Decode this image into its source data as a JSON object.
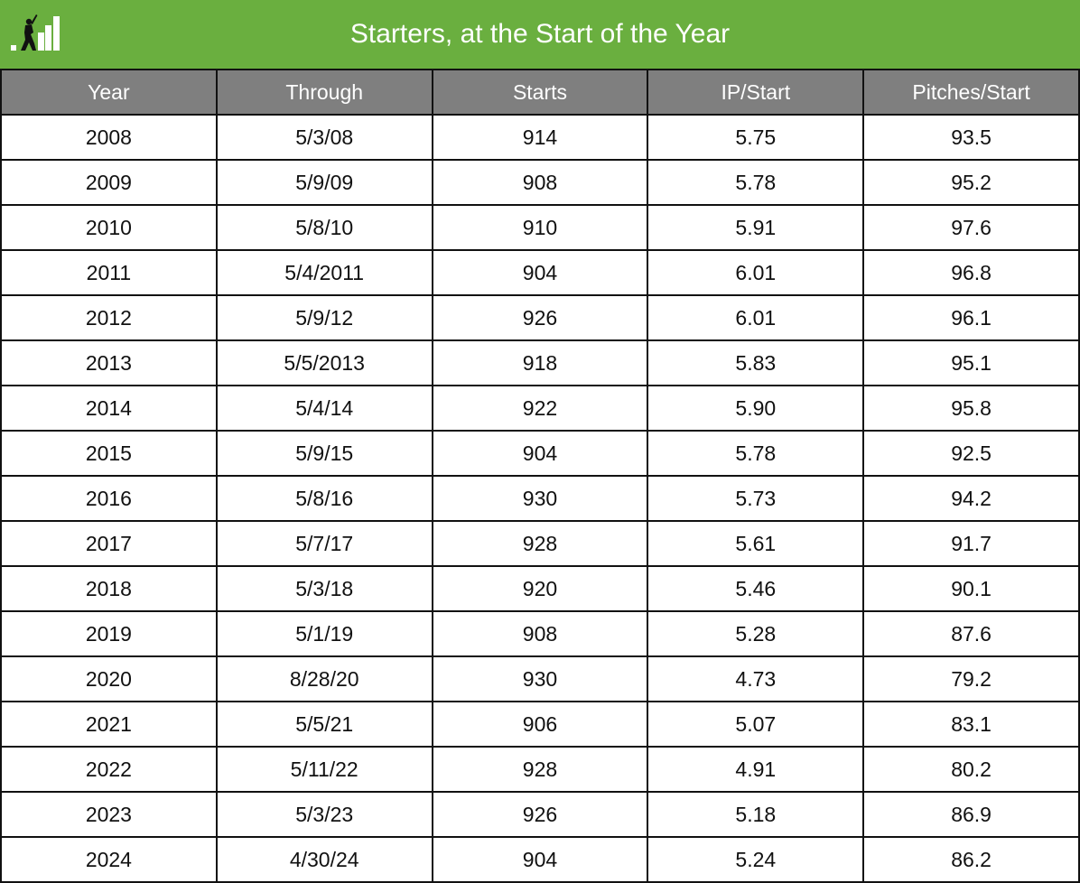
{
  "title": "Starters, at the Start of the Year",
  "logo": {
    "icon": "batter-bar-chart-logo-icon",
    "color": "#ffffff"
  },
  "colors": {
    "header_bg": "#6aaf3f",
    "column_header_bg": "#7f7f7f",
    "border": "#111111"
  },
  "chart_data": {
    "type": "table",
    "title": "Starters, at the Start of the Year",
    "columns": [
      "Year",
      "Through",
      "Starts",
      "IP/Start",
      "Pitches/Start"
    ],
    "rows": [
      [
        "2008",
        "5/3/08",
        "914",
        "5.75",
        "93.5"
      ],
      [
        "2009",
        "5/9/09",
        "908",
        "5.78",
        "95.2"
      ],
      [
        "2010",
        "5/8/10",
        "910",
        "5.91",
        "97.6"
      ],
      [
        "2011",
        "5/4/2011",
        "904",
        "6.01",
        "96.8"
      ],
      [
        "2012",
        "5/9/12",
        "926",
        "6.01",
        "96.1"
      ],
      [
        "2013",
        "5/5/2013",
        "918",
        "5.83",
        "95.1"
      ],
      [
        "2014",
        "5/4/14",
        "922",
        "5.90",
        "95.8"
      ],
      [
        "2015",
        "5/9/15",
        "904",
        "5.78",
        "92.5"
      ],
      [
        "2016",
        "5/8/16",
        "930",
        "5.73",
        "94.2"
      ],
      [
        "2017",
        "5/7/17",
        "928",
        "5.61",
        "91.7"
      ],
      [
        "2018",
        "5/3/18",
        "920",
        "5.46",
        "90.1"
      ],
      [
        "2019",
        "5/1/19",
        "908",
        "5.28",
        "87.6"
      ],
      [
        "2020",
        "8/28/20",
        "930",
        "4.73",
        "79.2"
      ],
      [
        "2021",
        "5/5/21",
        "906",
        "5.07",
        "83.1"
      ],
      [
        "2022",
        "5/11/22",
        "928",
        "4.91",
        "80.2"
      ],
      [
        "2023",
        "5/3/23",
        "926",
        "5.18",
        "86.9"
      ],
      [
        "2024",
        "4/30/24",
        "904",
        "5.24",
        "86.2"
      ]
    ]
  }
}
